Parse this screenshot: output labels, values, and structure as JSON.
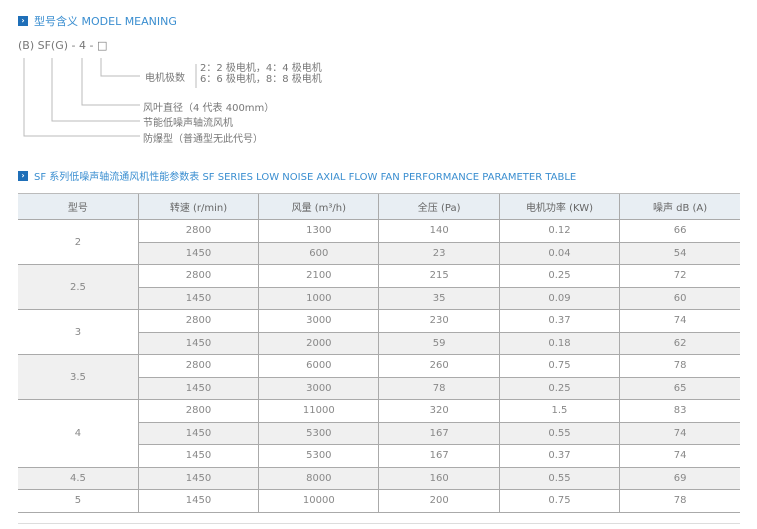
{
  "model_meaning": {
    "title": "型号含义 MODEL MEANING",
    "code": "(B) SF(G) - 4 - □",
    "poles_label": "电机极数",
    "poles_options": [
      "2：2 极电机，4：4 极电机",
      "6：6 极电机，8：8 极电机"
    ],
    "diameter": "风叶直径（4 代表 400mm）",
    "type": "节能低噪声轴流风机",
    "explosion": "防爆型（普通型无此代号）"
  },
  "table": {
    "title": "SF 系列低噪声轴流通风机性能参数表 SF SERIES LOW NOISE AXIAL FLOW FAN PERFORMANCE PARAMETER TABLE",
    "headers": [
      "型号",
      "转速 (r/min)",
      "风量 (m³/h)",
      "全压 (Pa)",
      "电机功率 (KW)",
      "噪声 dB (A)"
    ],
    "groups": [
      {
        "model": "2",
        "rows": [
          [
            "2800",
            "1300",
            "140",
            "0.12",
            "66"
          ],
          [
            "1450",
            "600",
            "23",
            "0.04",
            "54"
          ]
        ]
      },
      {
        "model": "2.5",
        "rows": [
          [
            "2800",
            "2100",
            "215",
            "0.25",
            "72"
          ],
          [
            "1450",
            "1000",
            "35",
            "0.09",
            "60"
          ]
        ]
      },
      {
        "model": "3",
        "rows": [
          [
            "2800",
            "3000",
            "230",
            "0.37",
            "74"
          ],
          [
            "1450",
            "2000",
            "59",
            "0.18",
            "62"
          ]
        ]
      },
      {
        "model": "3.5",
        "rows": [
          [
            "2800",
            "6000",
            "260",
            "0.75",
            "78"
          ],
          [
            "1450",
            "3000",
            "78",
            "0.25",
            "65"
          ]
        ]
      },
      {
        "model": "4",
        "rows": [
          [
            "2800",
            "11000",
            "320",
            "1.5",
            "83"
          ],
          [
            "1450",
            "5300",
            "167",
            "0.55",
            "74"
          ],
          [
            "1450",
            "5300",
            "167",
            "0.37",
            "74"
          ]
        ]
      },
      {
        "model": "4.5",
        "rows": [
          [
            "1450",
            "8000",
            "160",
            "0.55",
            "69"
          ]
        ]
      },
      {
        "model": "5",
        "rows": [
          [
            "1450",
            "10000",
            "200",
            "0.75",
            "78"
          ]
        ]
      }
    ]
  }
}
